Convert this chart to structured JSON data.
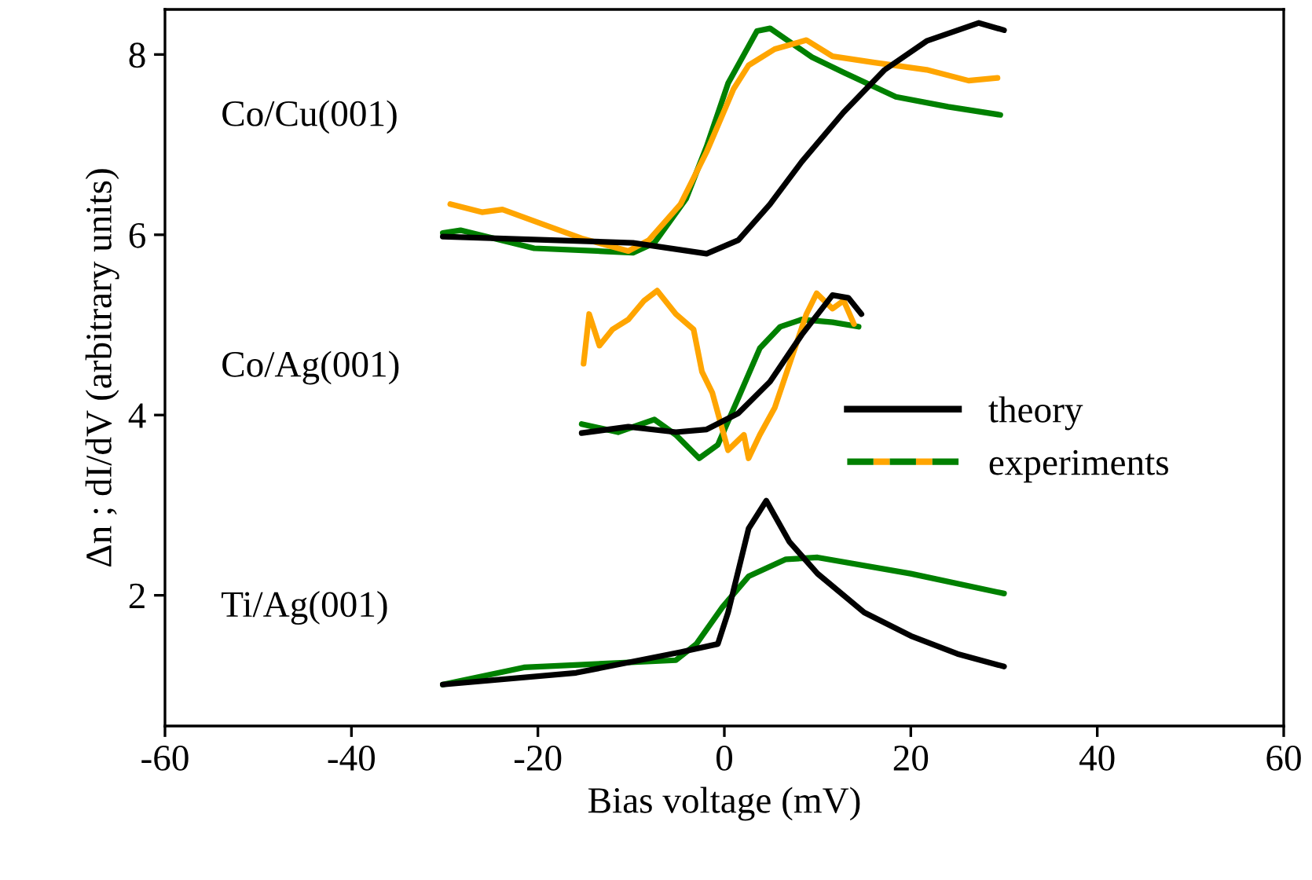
{
  "chart_data": {
    "type": "line",
    "xlabel": "Bias voltage (mV)",
    "ylabel": "Δn ; dI/dV (arbitrary units)",
    "xlim": [
      -60,
      60
    ],
    "xticks": [
      -60,
      -40,
      -20,
      0,
      20,
      40,
      60
    ],
    "ylim": [
      0.55,
      8.5
    ],
    "yticks": [
      2,
      4,
      6,
      8
    ],
    "grid": false,
    "legend": "right",
    "line_style": "solid",
    "marker": "none",
    "annotations": [
      "Co/Cu(001)",
      "Co/Ag(001)",
      "Ti/Ag(001)"
    ],
    "series": [
      {
        "name": "theory",
        "color": "#000000",
        "x": [
          -30.2,
          -9.8,
          -1.9,
          1.5,
          4.9,
          8.3,
          12.8,
          17.2,
          21.7,
          27.3,
          30
        ],
        "values": [
          5.98,
          5.91,
          5.79,
          5.94,
          6.34,
          6.81,
          7.36,
          7.83,
          8.15,
          8.35,
          8.27
        ]
      },
      {
        "name": "experiments",
        "color": "#008000",
        "x": [
          -30.2,
          -28.3,
          -20.4,
          -13.7,
          -9.8,
          -7.5,
          -4.1,
          -1.9,
          0.4,
          3.5,
          4.9,
          9.4,
          12.8,
          18.4,
          24,
          29.6
        ],
        "values": [
          6.02,
          6.05,
          5.85,
          5.82,
          5.8,
          5.91,
          6.4,
          6.98,
          7.68,
          8.26,
          8.29,
          7.97,
          7.8,
          7.53,
          7.42,
          7.33
        ]
      },
      {
        "color": "#ffa500",
        "x": [
          -29.4,
          -26,
          -23.8,
          -19.3,
          -15.3,
          -10.3,
          -8.1,
          -4.7,
          -1.9,
          1.0,
          2.6,
          5.4,
          8.8,
          11.6,
          16.1,
          21.7,
          26.2,
          29.3
        ],
        "values": [
          6.34,
          6.25,
          6.28,
          6.11,
          5.96,
          5.82,
          5.94,
          6.34,
          6.92,
          7.62,
          7.88,
          8.06,
          8.16,
          7.98,
          7.91,
          7.83,
          7.71,
          7.74
        ]
      },
      {
        "color": "#008000",
        "x": [
          -15.3,
          -11.4,
          -7.5,
          -5.2,
          -2.7,
          -0.7,
          1.5,
          3.8,
          6.0,
          8.3,
          11.6,
          14.4
        ],
        "values": [
          3.9,
          3.81,
          3.95,
          3.78,
          3.52,
          3.67,
          4.19,
          4.74,
          4.98,
          5.06,
          5.03,
          4.98
        ]
      },
      {
        "color": "#ffa500",
        "x": [
          -15.1,
          -14.5,
          -13.4,
          -12.0,
          -10.3,
          -8.6,
          -7.2,
          -5.2,
          -3.3,
          -2.4,
          -1.3,
          0.4,
          2.1,
          2.6,
          3.8,
          5.4,
          7.1,
          8.8,
          9.9,
          11.6,
          12.8,
          13.9
        ],
        "values": [
          4.57,
          5.12,
          4.77,
          4.95,
          5.06,
          5.27,
          5.38,
          5.12,
          4.95,
          4.48,
          4.25,
          3.61,
          3.78,
          3.52,
          3.78,
          4.08,
          4.6,
          5.12,
          5.35,
          5.18,
          5.27,
          5.01
        ]
      },
      {
        "color": "#000000",
        "x": [
          -15.3,
          -10.3,
          -5.2,
          -1.9,
          1.5,
          4.9,
          8.3,
          11.6,
          13.3,
          14.7
        ],
        "values": [
          3.8,
          3.87,
          3.81,
          3.84,
          4.02,
          4.37,
          4.89,
          5.33,
          5.3,
          5.12
        ]
      },
      {
        "color": "#008000",
        "x": [
          -30.2,
          -21.5,
          -5.2,
          -3.0,
          -0.2,
          2.6,
          6.6,
          10,
          20,
          30
        ],
        "values": [
          1.01,
          1.2,
          1.28,
          1.46,
          1.87,
          2.21,
          2.4,
          2.42,
          2.24,
          2.02
        ]
      },
      {
        "color": "#000000",
        "x": [
          -30.2,
          -15.9,
          -4.7,
          -0.7,
          0.4,
          2.6,
          4.5,
          7,
          10,
          15,
          20,
          25,
          30
        ],
        "values": [
          1.01,
          1.14,
          1.37,
          1.46,
          1.81,
          2.74,
          3.05,
          2.59,
          2.24,
          1.81,
          1.55,
          1.35,
          1.21
        ]
      }
    ]
  }
}
